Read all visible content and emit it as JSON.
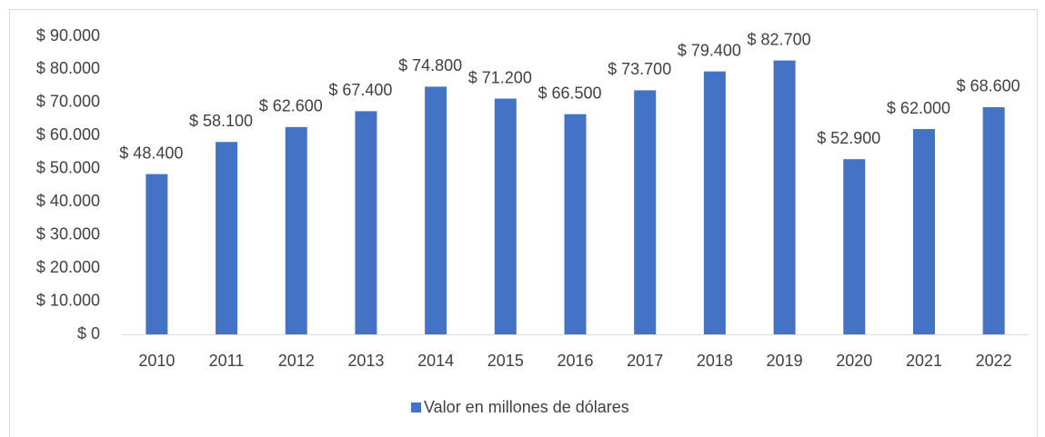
{
  "chart_data": {
    "type": "bar",
    "categories": [
      "2010",
      "2011",
      "2012",
      "2013",
      "2014",
      "2015",
      "2016",
      "2017",
      "2018",
      "2019",
      "2020",
      "2021",
      "2022"
    ],
    "series": [
      {
        "name": "Valor en millones de dólares",
        "color": "#4472c4",
        "values": [
          48400,
          58100,
          62600,
          67400,
          74800,
          71200,
          66500,
          73700,
          79400,
          82700,
          52900,
          62000,
          68600
        ],
        "value_labels": [
          "$ 48.400",
          "$ 58.100",
          "$ 62.600",
          "$ 67.400",
          "$ 74.800",
          "$ 71.200",
          "$ 66.500",
          "$ 73.700",
          "$ 79.400",
          "$ 82.700",
          "$ 52.900",
          "$ 62.000",
          "$ 68.600"
        ]
      }
    ],
    "ylim": [
      0,
      90000
    ],
    "yticks": [
      {
        "value": 0,
        "label": "$ 0"
      },
      {
        "value": 10000,
        "label": "$ 10.000"
      },
      {
        "value": 20000,
        "label": "$ 20.000"
      },
      {
        "value": 30000,
        "label": "$ 30.000"
      },
      {
        "value": 40000,
        "label": "$ 40.000"
      },
      {
        "value": 50000,
        "label": "$ 50.000"
      },
      {
        "value": 60000,
        "label": "$ 60.000"
      },
      {
        "value": 70000,
        "label": "$ 70.000"
      },
      {
        "value": 80000,
        "label": "$ 80.000"
      },
      {
        "value": 90000,
        "label": "$ 90.000"
      }
    ],
    "grid": false,
    "legend": "bottom"
  }
}
